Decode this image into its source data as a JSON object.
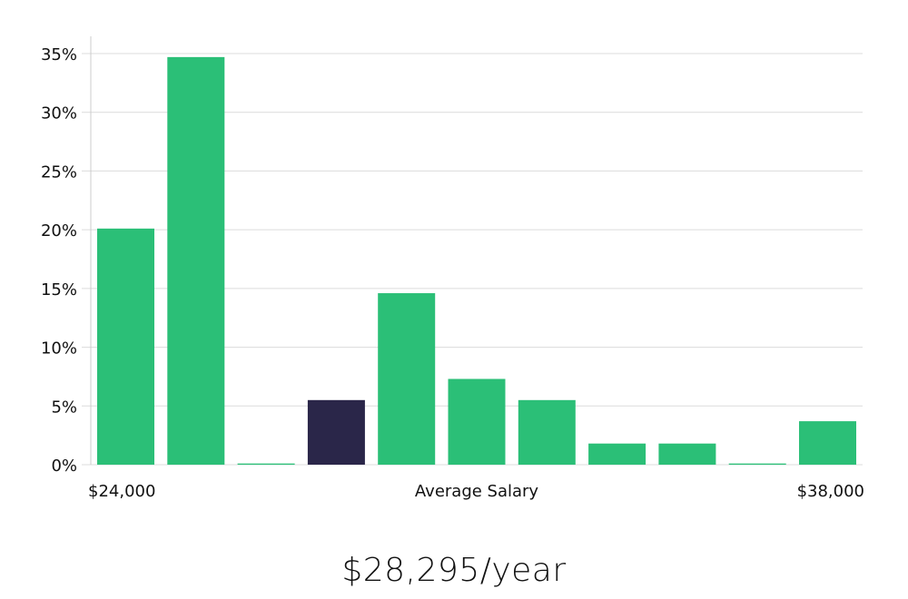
{
  "chart_data": {
    "type": "bar",
    "ylabel": "",
    "xlabel": "Average Salary",
    "x_range_labels": {
      "min": "$24,000",
      "max": "$38,000"
    },
    "ylim": [
      0,
      35
    ],
    "y_ticks": [
      0,
      5,
      10,
      15,
      20,
      25,
      30,
      35
    ],
    "y_tick_labels": [
      "0%",
      "5%",
      "10%",
      "15%",
      "20%",
      "25%",
      "30%",
      "35%"
    ],
    "grid": true,
    "values": [
      20.1,
      34.7,
      0.1,
      5.5,
      14.6,
      7.3,
      5.5,
      1.8,
      1.8,
      0.1,
      3.7
    ],
    "highlight_index": 3,
    "bar_color": "#2bbf77",
    "highlight_color": "#2a2649",
    "grid_color": "#dcdcdc"
  },
  "salary_text": "$28,295/year"
}
